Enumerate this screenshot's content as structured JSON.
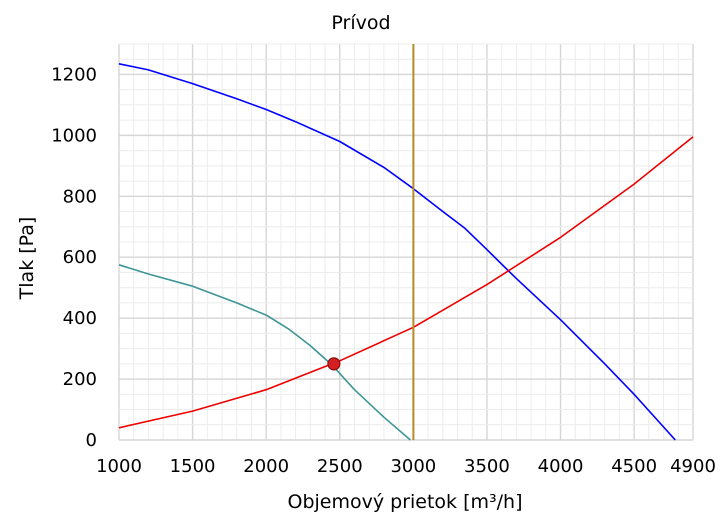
{
  "chart_data": {
    "type": "line",
    "title": "Prívod",
    "xlabel": "Objemový prietok [m³/h]",
    "ylabel": "Tlak [Pa]",
    "xlim": [
      1000,
      4900
    ],
    "ylim": [
      0,
      1300
    ],
    "x_ticks": [
      1000,
      1500,
      2000,
      2500,
      3000,
      3500,
      4000,
      4500,
      4900
    ],
    "x_tick_labels": [
      "1000",
      "1500",
      "2000",
      "2500",
      "3000",
      "3500",
      "4000",
      "4500",
      "4900"
    ],
    "y_ticks": [
      0,
      200,
      400,
      600,
      800,
      1000,
      1200
    ],
    "y_tick_labels": [
      "0",
      "200",
      "400",
      "600",
      "800",
      "1000",
      "1200"
    ],
    "grid": true,
    "legend": "none",
    "series": [
      {
        "color": "#0000ff",
        "x": [
          1000,
          1200,
          1500,
          1800,
          2000,
          2200,
          2500,
          2800,
          3000,
          3200,
          3350,
          3500,
          3700,
          4000,
          4300,
          4500,
          4780
        ],
        "y": [
          1235,
          1215,
          1170,
          1120,
          1085,
          1045,
          980,
          895,
          825,
          750,
          695,
          625,
          530,
          395,
          250,
          150,
          0
        ]
      },
      {
        "color": "#ee0000",
        "x": [
          1000,
          1500,
          2000,
          2500,
          3000,
          3500,
          4000,
          4500,
          4900
        ],
        "y": [
          40,
          95,
          165,
          260,
          370,
          510,
          665,
          840,
          995
        ]
      },
      {
        "color": "#3e9595",
        "x": [
          1000,
          1200,
          1500,
          1800,
          2000,
          2150,
          2300,
          2450,
          2600,
          2800,
          2980
        ],
        "y": [
          575,
          545,
          505,
          450,
          410,
          365,
          310,
          245,
          165,
          75,
          0
        ]
      },
      {
        "color": "#b88a27",
        "x": [
          3000,
          3000
        ],
        "y": [
          0,
          1300
        ]
      }
    ],
    "points": [
      {
        "x": 2460,
        "y": 250,
        "color": "#d42020"
      }
    ]
  }
}
